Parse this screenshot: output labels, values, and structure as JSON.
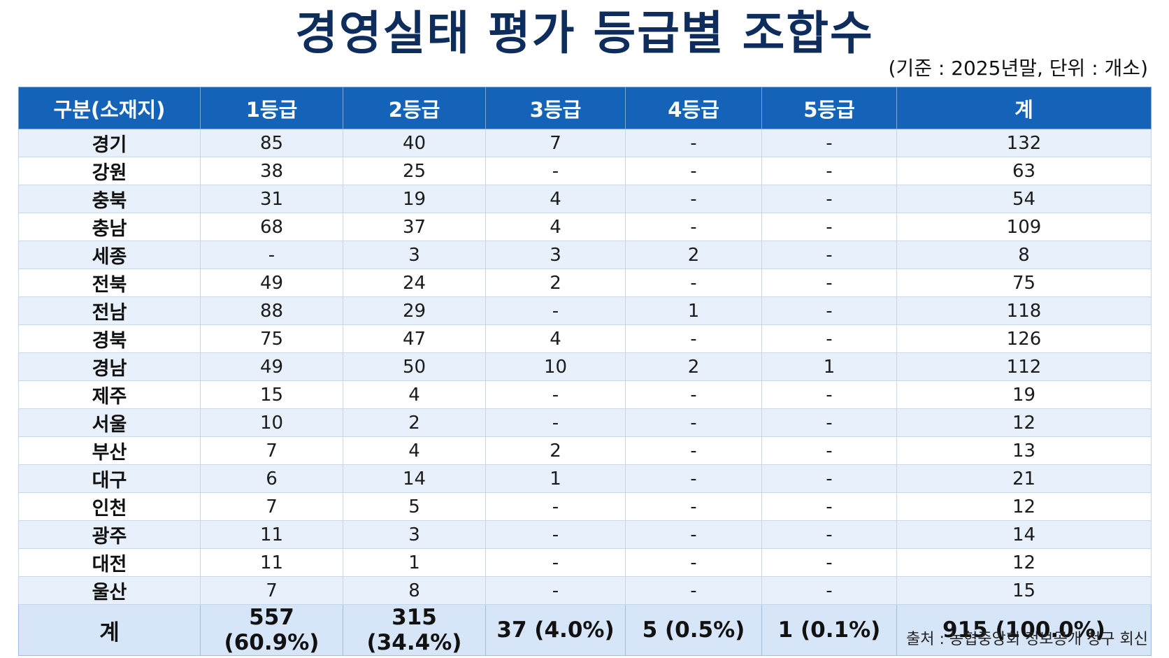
{
  "title": "경영실태 평가 등급별 조합수",
  "basis_note": "(기준 : 2025년말, 단위 : 개소)",
  "source_note": "출처 : 농협중앙회 정보공개 청구 회신",
  "table": {
    "headers": [
      "구분(소재지)",
      "1등급",
      "2등급",
      "3등급",
      "4등급",
      "5등급",
      "계"
    ],
    "rows": [
      [
        "경기",
        "85",
        "40",
        "7",
        "-",
        "-",
        "132"
      ],
      [
        "강원",
        "38",
        "25",
        "-",
        "-",
        "-",
        "63"
      ],
      [
        "충북",
        "31",
        "19",
        "4",
        "-",
        "-",
        "54"
      ],
      [
        "충남",
        "68",
        "37",
        "4",
        "-",
        "-",
        "109"
      ],
      [
        "세종",
        "-",
        "3",
        "3",
        "2",
        "-",
        "8"
      ],
      [
        "전북",
        "49",
        "24",
        "2",
        "-",
        "-",
        "75"
      ],
      [
        "전남",
        "88",
        "29",
        "-",
        "1",
        "-",
        "118"
      ],
      [
        "경북",
        "75",
        "47",
        "4",
        "-",
        "-",
        "126"
      ],
      [
        "경남",
        "49",
        "50",
        "10",
        "2",
        "1",
        "112"
      ],
      [
        "제주",
        "15",
        "4",
        "-",
        "-",
        "-",
        "19"
      ],
      [
        "서울",
        "10",
        "2",
        "-",
        "-",
        "-",
        "12"
      ],
      [
        "부산",
        "7",
        "4",
        "2",
        "-",
        "-",
        "13"
      ],
      [
        "대구",
        "6",
        "14",
        "1",
        "-",
        "-",
        "21"
      ],
      [
        "인천",
        "7",
        "5",
        "-",
        "-",
        "-",
        "12"
      ],
      [
        "광주",
        "11",
        "3",
        "-",
        "-",
        "-",
        "14"
      ],
      [
        "대전",
        "11",
        "1",
        "-",
        "-",
        "-",
        "12"
      ],
      [
        "울산",
        "7",
        "8",
        "-",
        "-",
        "-",
        "15"
      ]
    ],
    "total": [
      "계",
      "557 (60.9%)",
      "315 (34.4%)",
      "37 (4.0%)",
      "5 (0.5%)",
      "1 (0.1%)",
      "915 (100.0%)"
    ]
  },
  "colors": {
    "title": "#0f2d5c",
    "header_bg": "#1463b8",
    "row_alt_bg": "#e8f1fb",
    "total_bg": "#d6e6f8"
  }
}
